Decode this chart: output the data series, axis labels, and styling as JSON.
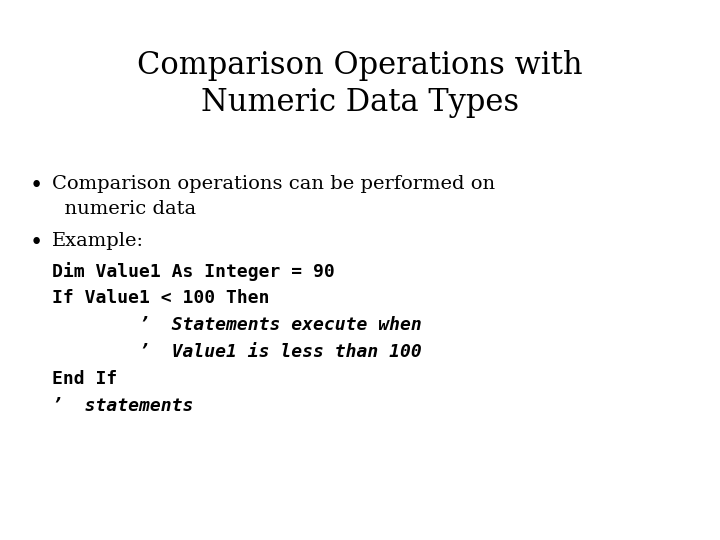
{
  "title_line1": "Comparison Operations with",
  "title_line2": "Numeric Data Types",
  "title_fontsize": 22,
  "title_font": "DejaVu Serif",
  "background_color": "#ffffff",
  "text_color": "#000000",
  "bullet1_line1": "Comparison operations can be performed on",
  "bullet1_line2": "  numeric data",
  "bullet2": "Example:",
  "code_lines": [
    "Dim Value1 As Integer = 90",
    "If Value1 < 100 Then",
    "        ’  Statements execute when",
    "        ’  Value1 is less than 100",
    "End If",
    "’  statements"
  ],
  "code_italic_lines": [
    false,
    false,
    true,
    true,
    false,
    true
  ],
  "bullet_fontsize": 14,
  "code_fontsize": 13
}
